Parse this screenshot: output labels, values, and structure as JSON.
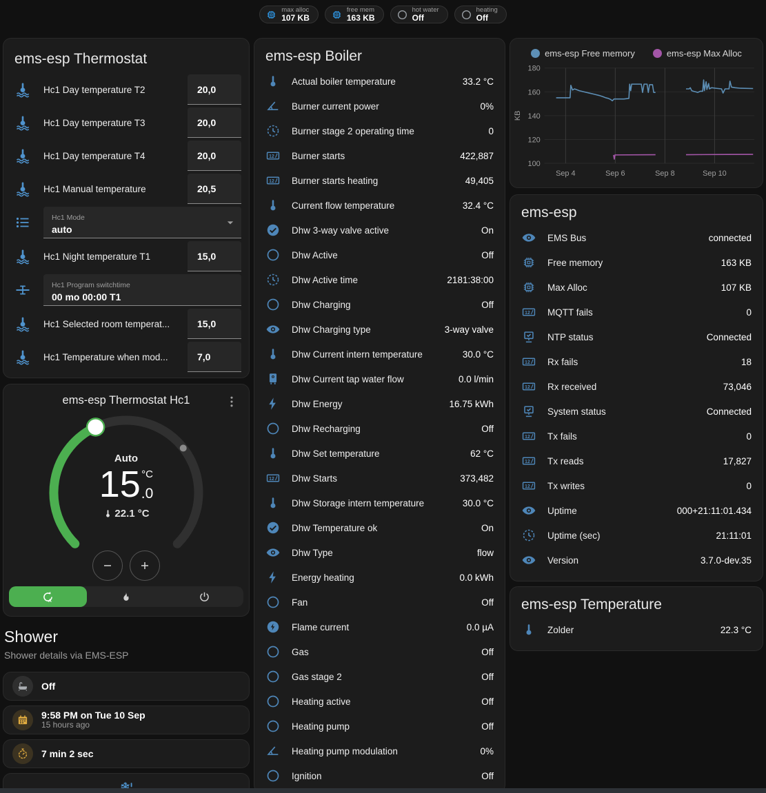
{
  "colors": {
    "page_bg": "#111111",
    "card_bg": "#1c1c1c",
    "accent_green": "#4caf50",
    "icon_blue": "#4e86b8",
    "badge_blue": "#2f9ff2",
    "amber": "#e0ab3f",
    "chart_blue": "#5d8fb6",
    "chart_purple": "#a456a8"
  },
  "top_badges": [
    {
      "label": "max alloc",
      "value": "107 KB",
      "icon": "chip-icon",
      "color": "blue"
    },
    {
      "label": "free mem",
      "value": "163 KB",
      "icon": "chip-icon",
      "color": "blue"
    },
    {
      "label": "hot water",
      "value": "Off",
      "icon": "circle-outline-icon",
      "color": "gray"
    },
    {
      "label": "heating",
      "value": "Off",
      "icon": "circle-outline-icon",
      "color": "gray"
    }
  ],
  "thermostat_card": {
    "title": "ems-esp Thermostat",
    "rows": [
      {
        "type": "number",
        "icon": "thermometer-water-icon",
        "label": "Hc1 Day temperature T2",
        "value": "20,0"
      },
      {
        "type": "number",
        "icon": "thermometer-water-icon",
        "label": "Hc1 Day temperature T3",
        "value": "20,0"
      },
      {
        "type": "number",
        "icon": "thermometer-water-icon",
        "label": "Hc1 Day temperature T4",
        "value": "20,0"
      },
      {
        "type": "number",
        "icon": "thermometer-water-icon",
        "label": "Hc1 Manual temperature",
        "value": "20,5"
      },
      {
        "type": "select",
        "icon": "list-icon",
        "label": "Hc1 Mode",
        "value": "auto"
      },
      {
        "type": "number",
        "icon": "thermometer-water-icon",
        "label": "Hc1 Night temperature T1",
        "value": "15,0"
      },
      {
        "type": "text",
        "icon": "valve-icon",
        "label": "Hc1 Program switchtime",
        "value": "00 mo 00:00 T1"
      },
      {
        "type": "number",
        "icon": "thermometer-water-icon",
        "label": "Hc1 Selected room temperat...",
        "value": "15,0"
      },
      {
        "type": "number",
        "icon": "thermometer-water-icon",
        "label": "Hc1 Temperature when mod...",
        "value": "7,0"
      }
    ]
  },
  "dial_card": {
    "title": "ems-esp Thermostat Hc1",
    "mode": "Auto",
    "target_int": "15",
    "target_frac": ".0",
    "target_unit": "°C",
    "current_temp": "22.1 °C",
    "modes": [
      {
        "name": "auto",
        "icon": "auto-mode-icon",
        "active": true
      },
      {
        "name": "heat",
        "icon": "flame-icon",
        "active": false
      },
      {
        "name": "off",
        "icon": "power-icon",
        "active": false
      }
    ]
  },
  "shower_section": {
    "title": "Shower",
    "subtitle": "Shower details via EMS-ESP",
    "cards": [
      {
        "icon": "bathtub-icon",
        "style": "gray",
        "primary": "Off"
      },
      {
        "icon": "calendar-icon",
        "style": "amber",
        "primary": "9:58 PM on Tue 10 Sep",
        "secondary": "15 hours ago"
      },
      {
        "icon": "timer-icon",
        "style": "amber",
        "primary": "7 min 2 sec"
      },
      {
        "icon": "snowflake-alert-icon",
        "style": "center"
      }
    ]
  },
  "boiler_card": {
    "title": "ems-esp Boiler",
    "rows": [
      {
        "icon": "thermometer-icon",
        "label": "Actual boiler temperature",
        "value": "33.2 °C"
      },
      {
        "icon": "angle-acute-icon",
        "label": "Burner current power",
        "value": "0%"
      },
      {
        "icon": "clock-icon",
        "label": "Burner stage 2 operating time",
        "value": "0"
      },
      {
        "icon": "counter-icon",
        "label": "Burner starts",
        "value": "422,887"
      },
      {
        "icon": "counter-icon",
        "label": "Burner starts heating",
        "value": "49,405"
      },
      {
        "icon": "thermometer-icon",
        "label": "Current flow temperature",
        "value": "32.4 °C"
      },
      {
        "icon": "check-circle-icon",
        "label": "Dhw 3-way valve active",
        "value": "On"
      },
      {
        "icon": "circle-outline-icon",
        "label": "Dhw Active",
        "value": "Off"
      },
      {
        "icon": "clock-icon",
        "label": "Dhw Active time",
        "value": "2181:38:00"
      },
      {
        "icon": "circle-outline-icon",
        "label": "Dhw Charging",
        "value": "Off"
      },
      {
        "icon": "eye-icon",
        "label": "Dhw Charging type",
        "value": "3-way valve"
      },
      {
        "icon": "thermometer-icon",
        "label": "Dhw Current intern temperature",
        "value": "30.0 °C"
      },
      {
        "icon": "water-boiler-icon",
        "label": "Dhw Current tap water flow",
        "value": "0.0 l/min"
      },
      {
        "icon": "flash-icon",
        "label": "Dhw Energy",
        "value": "16.75 kWh"
      },
      {
        "icon": "circle-outline-icon",
        "label": "Dhw Recharging",
        "value": "Off"
      },
      {
        "icon": "thermometer-icon",
        "label": "Dhw Set temperature",
        "value": "62 °C"
      },
      {
        "icon": "counter-icon",
        "label": "Dhw Starts",
        "value": "373,482"
      },
      {
        "icon": "thermometer-icon",
        "label": "Dhw Storage intern temperature",
        "value": "30.0 °C"
      },
      {
        "icon": "check-circle-icon",
        "label": "Dhw Temperature ok",
        "value": "On"
      },
      {
        "icon": "eye-icon",
        "label": "Dhw Type",
        "value": "flow"
      },
      {
        "icon": "flash-icon",
        "label": "Energy heating",
        "value": "0.0 kWh"
      },
      {
        "icon": "circle-outline-icon",
        "label": "Fan",
        "value": "Off"
      },
      {
        "icon": "flash-circle-icon",
        "label": "Flame current",
        "value": "0.0 µA"
      },
      {
        "icon": "circle-outline-icon",
        "label": "Gas",
        "value": "Off"
      },
      {
        "icon": "circle-outline-icon",
        "label": "Gas stage 2",
        "value": "Off"
      },
      {
        "icon": "circle-outline-icon",
        "label": "Heating active",
        "value": "Off"
      },
      {
        "icon": "circle-outline-icon",
        "label": "Heating pump",
        "value": "Off"
      },
      {
        "icon": "angle-acute-icon",
        "label": "Heating pump modulation",
        "value": "0%"
      },
      {
        "icon": "circle-outline-icon",
        "label": "Ignition",
        "value": "Off"
      }
    ]
  },
  "chart_data": {
    "type": "line",
    "title": "",
    "xlabel": "",
    "ylabel": "KB",
    "ylim": [
      100,
      180
    ],
    "yticks": [
      100,
      120,
      140,
      160,
      180
    ],
    "xticks": [
      "Sep 4",
      "Sep 6",
      "Sep 8",
      "Sep 10"
    ],
    "xtick_days": [
      4,
      6,
      8,
      10
    ],
    "xlim_days": [
      3.15,
      11.6
    ],
    "grid": true,
    "legend_position": "top",
    "series": [
      {
        "name": "ems-esp Free memory",
        "color": "#5d8fb6",
        "segments": [
          [
            [
              3.62,
              155
            ],
            [
              4.18,
              155
            ],
            [
              4.21,
              165.5
            ],
            [
              4.28,
              161.5
            ],
            [
              4.36,
              162.5
            ],
            [
              4.55,
              161
            ],
            [
              4.75,
              160
            ],
            [
              4.95,
              159
            ],
            [
              5.15,
              158
            ],
            [
              5.35,
              157
            ],
            [
              5.5,
              156
            ],
            [
              5.62,
              155
            ],
            [
              5.72,
              154.5
            ],
            [
              5.82,
              153.5
            ],
            [
              5.88,
              152.5
            ],
            [
              5.95,
              154
            ],
            [
              6.35,
              154
            ],
            [
              6.55,
              154.5
            ],
            [
              6.58,
              166.5
            ],
            [
              6.62,
              161
            ],
            [
              6.66,
              166.5
            ],
            [
              7.05,
              166.5
            ],
            [
              7.1,
              159.5
            ],
            [
              7.16,
              166.5
            ],
            [
              7.28,
              166.5
            ],
            [
              7.33,
              159.5
            ],
            [
              7.38,
              166
            ],
            [
              7.5,
              166
            ],
            [
              7.55,
              159.5
            ],
            [
              7.62,
              159.5
            ]
          ],
          [
            [
              8.85,
              162.5
            ],
            [
              8.98,
              162.5
            ],
            [
              9.02,
              163.5
            ],
            [
              9.08,
              161
            ],
            [
              9.15,
              160.5
            ],
            [
              9.25,
              160
            ],
            [
              9.32,
              159.5
            ],
            [
              9.42,
              160.5
            ],
            [
              9.52,
              160.5
            ],
            [
              9.56,
              170
            ],
            [
              9.59,
              161
            ],
            [
              9.66,
              168.5
            ],
            [
              9.69,
              162
            ],
            [
              9.76,
              167
            ],
            [
              9.79,
              162.5
            ],
            [
              9.88,
              163.5
            ],
            [
              10.05,
              163
            ],
            [
              10.28,
              162.5
            ],
            [
              10.34,
              159
            ],
            [
              10.42,
              162.5
            ],
            [
              10.58,
              162.5
            ],
            [
              10.62,
              169
            ],
            [
              10.68,
              164
            ],
            [
              10.82,
              163.5
            ],
            [
              11.05,
              163
            ],
            [
              11.55,
              162.8
            ]
          ]
        ]
      },
      {
        "name": "ems-esp Max Alloc",
        "color": "#a456a8",
        "segments": [
          [
            [
              5.93,
              107
            ],
            [
              5.96,
              103.5
            ],
            [
              5.99,
              107
            ],
            [
              7.62,
              107.2
            ]
          ],
          [
            [
              8.85,
              107.2
            ],
            [
              9.5,
              107.3
            ],
            [
              10.5,
              107.4
            ],
            [
              11.55,
              107.5
            ]
          ]
        ]
      }
    ]
  },
  "ems_card": {
    "title": "ems-esp",
    "rows": [
      {
        "icon": "eye-icon",
        "label": "EMS Bus",
        "value": "connected"
      },
      {
        "icon": "chip-icon",
        "label": "Free memory",
        "value": "163 KB"
      },
      {
        "icon": "chip-icon",
        "label": "Max Alloc",
        "value": "107 KB"
      },
      {
        "icon": "counter-icon",
        "label": "MQTT fails",
        "value": "0"
      },
      {
        "icon": "lan-check-icon",
        "label": "NTP status",
        "value": "Connected"
      },
      {
        "icon": "counter-icon",
        "label": "Rx fails",
        "value": "18"
      },
      {
        "icon": "counter-icon",
        "label": "Rx received",
        "value": "73,046"
      },
      {
        "icon": "lan-check-icon",
        "label": "System status",
        "value": "Connected"
      },
      {
        "icon": "counter-icon",
        "label": "Tx fails",
        "value": "0"
      },
      {
        "icon": "counter-icon",
        "label": "Tx reads",
        "value": "17,827"
      },
      {
        "icon": "counter-icon",
        "label": "Tx writes",
        "value": "0"
      },
      {
        "icon": "eye-icon",
        "label": "Uptime",
        "value": "000+21:11:01.434"
      },
      {
        "icon": "clock-icon",
        "label": "Uptime (sec)",
        "value": "21:11:01"
      },
      {
        "icon": "eye-icon",
        "label": "Version",
        "value": "3.7.0-dev.35"
      }
    ]
  },
  "temperature_card": {
    "title": "ems-esp Temperature",
    "rows": [
      {
        "icon": "thermometer-icon",
        "label": "Zolder",
        "value": "22.3 °C"
      }
    ]
  }
}
